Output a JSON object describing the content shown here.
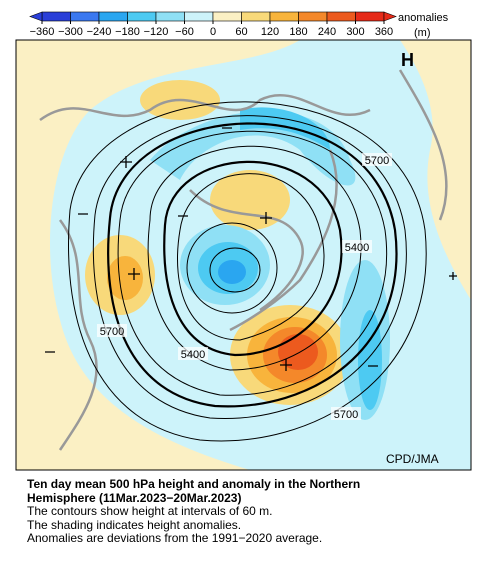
{
  "colorbar": {
    "ticks": [
      {
        "value": -360,
        "label": "−360"
      },
      {
        "value": -300,
        "label": "−300"
      },
      {
        "value": -240,
        "label": "−240"
      },
      {
        "value": -180,
        "label": "−180"
      },
      {
        "value": -120,
        "label": "−120"
      },
      {
        "value": -60,
        "label": "−60"
      },
      0,
      60,
      120,
      180,
      240,
      300,
      360
    ],
    "colors": [
      "#2a3fd8",
      "#3a78f0",
      "#2aa6f0",
      "#4dcaf2",
      "#8fe0f5",
      "#cdf3fa",
      "#fbf0c4",
      "#f8d97a",
      "#f8b43c",
      "#f4882a",
      "#ec5a1e",
      "#e62a18"
    ],
    "title": "anomalies",
    "unit": "(m)"
  },
  "map": {
    "high_label": "H",
    "contour_labels": [
      "5700",
      "5400",
      "5700",
      "5400",
      "5700"
    ],
    "credit": "CPD/JMA"
  },
  "caption": {
    "title_line1": "Ten day mean 500 hPa height and anomaly in the Northern",
    "title_line2": "Hemisphere (11Mar.2023−20Mar.2023)",
    "lines": [
      "The contours show height at intervals of 60 m.",
      "The shading indicates height anomalies.",
      "Anomalies are deviations from the 1991−2020 average."
    ]
  }
}
